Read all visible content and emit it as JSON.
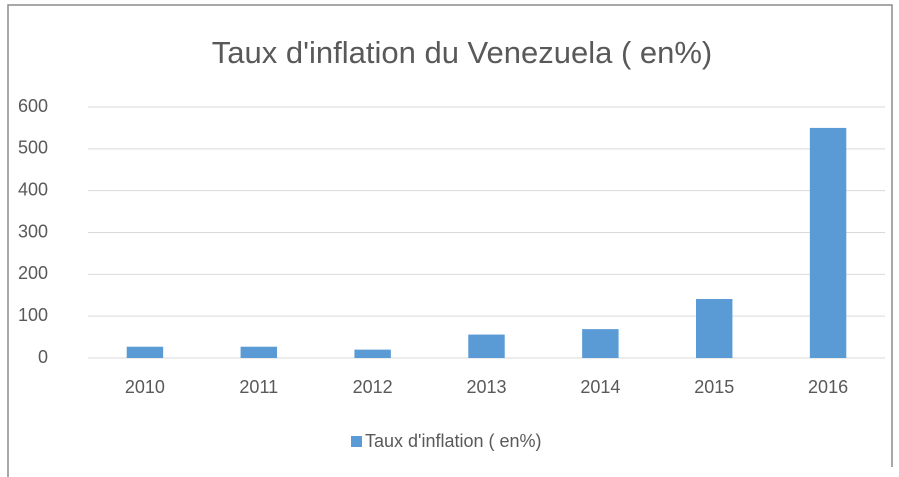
{
  "chart_data": {
    "type": "bar",
    "title": "Taux d'inflation du Venezuela ( en%)",
    "categories": [
      "2010",
      "2011",
      "2012",
      "2013",
      "2014",
      "2015",
      "2016"
    ],
    "series": [
      {
        "name": "Taux d'inflation ( en%)",
        "color": "#5b9bd5",
        "values": [
          27,
          27,
          20,
          56,
          69,
          141,
          550
        ]
      }
    ],
    "ylim": [
      0,
      600
    ],
    "yticks": [
      0,
      100,
      200,
      300,
      400,
      500,
      600
    ],
    "grid": true,
    "legend": "bottom"
  }
}
